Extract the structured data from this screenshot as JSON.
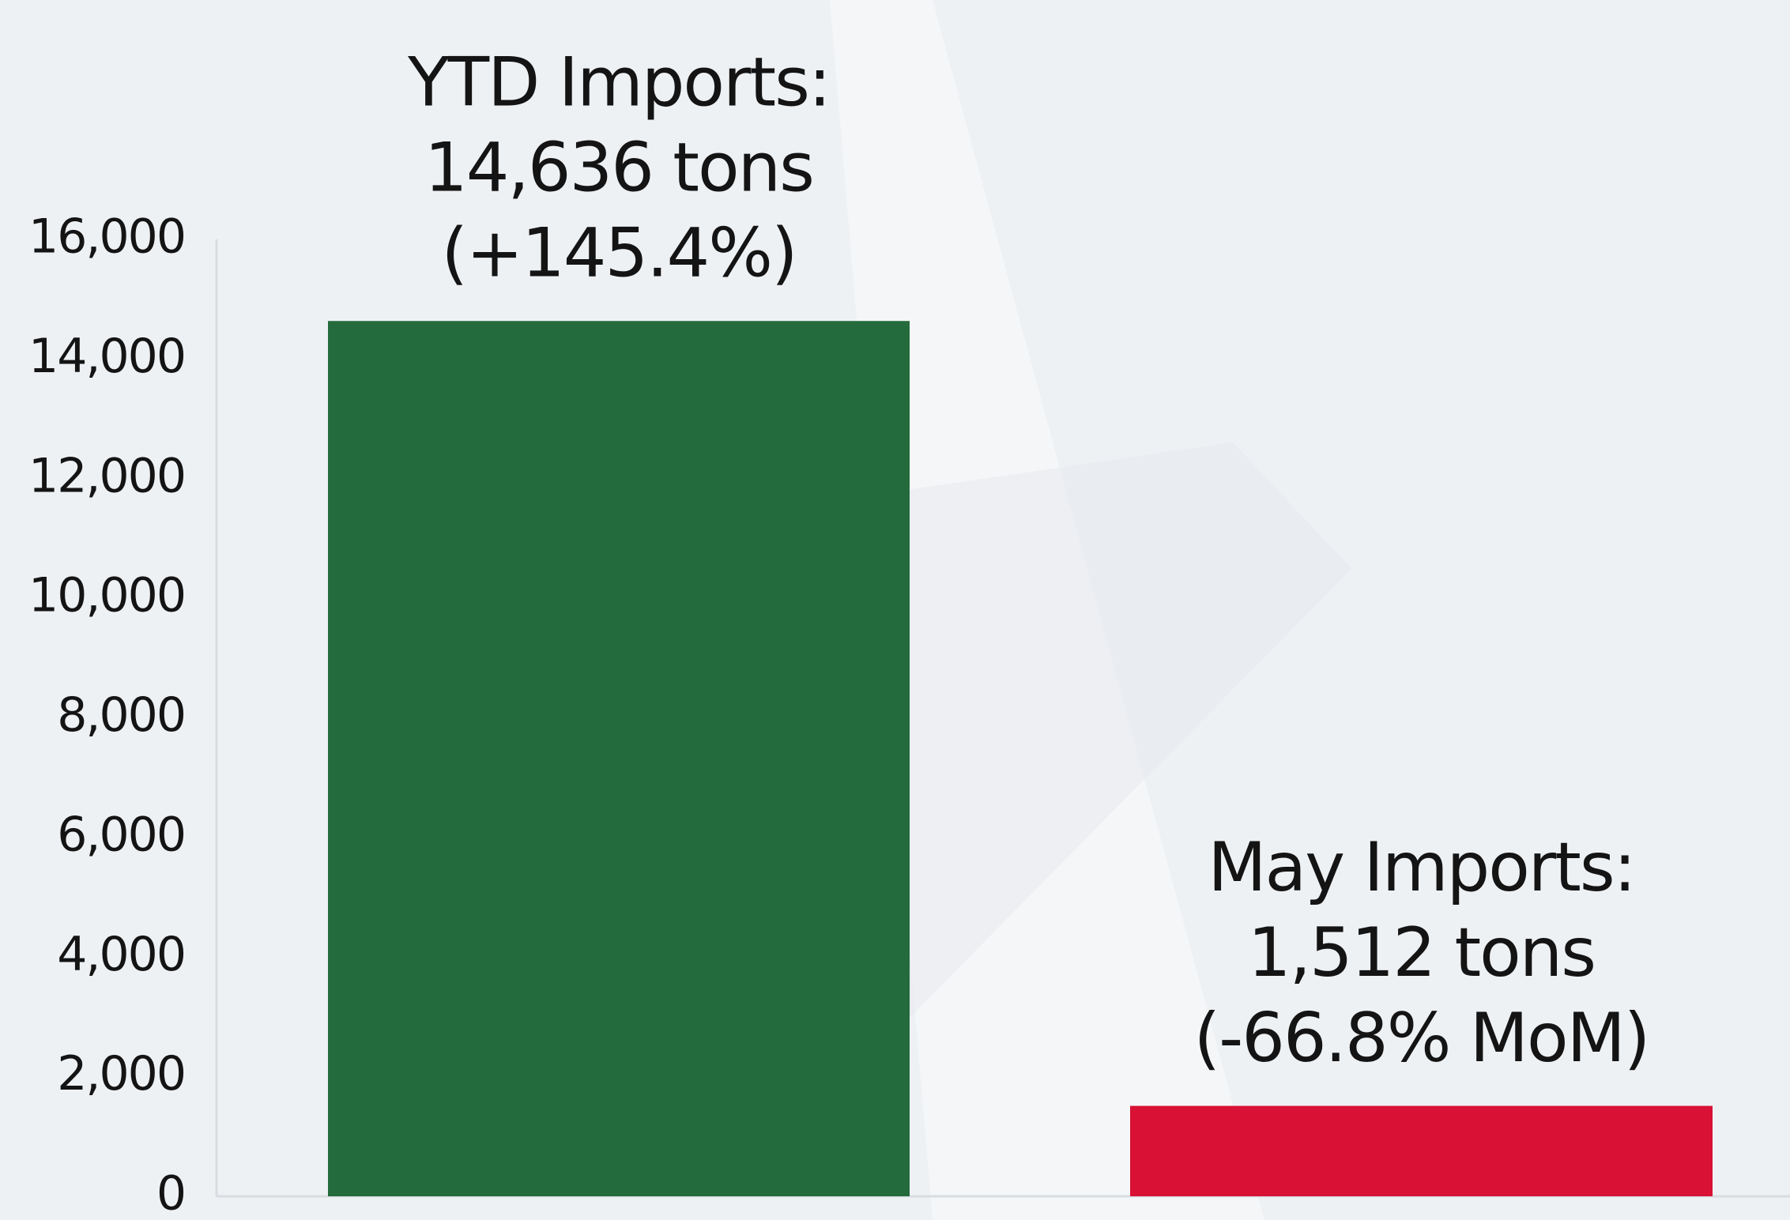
{
  "chart_data": {
    "type": "bar",
    "categories": [
      null,
      null
    ],
    "values": [
      14636,
      1512
    ],
    "value_labels": [
      [
        "YTD Imports:",
        "14,636 tons",
        "(+145.4%)"
      ],
      [
        "May Imports:",
        "1,512 tons",
        "(-66.8% MoM)"
      ]
    ],
    "colors": [
      "#236b3c",
      "#d81135"
    ],
    "ylim": [
      0,
      16000
    ],
    "yticks": [
      0,
      {
        "value": 2000,
        "label": "2,000"
      },
      {
        "value": 4000,
        "label": "4,000"
      },
      {
        "value": 6000,
        "label": "6,000"
      },
      {
        "value": 8000,
        "label": "8,000"
      },
      {
        "value": 10000,
        "label": "10,000"
      },
      {
        "value": 12000,
        "label": "12,000"
      },
      {
        "value": 14000,
        "label": "14,000"
      },
      {
        "value": 16000,
        "label": "16,000"
      }
    ],
    "grid": false
  }
}
